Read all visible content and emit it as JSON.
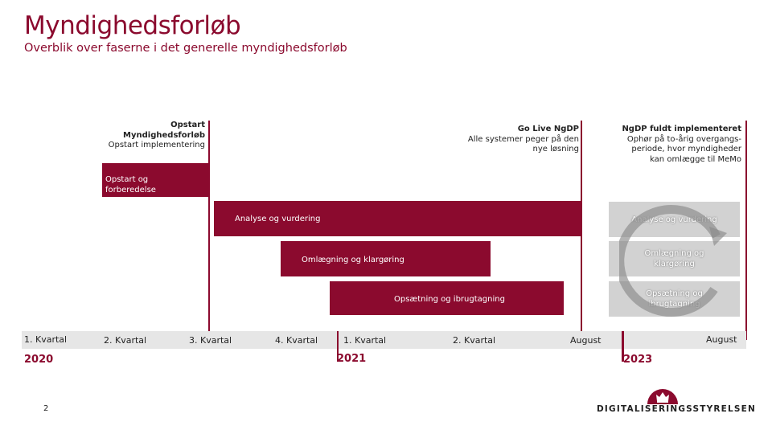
{
  "header": {
    "title": "Myndighedsforløb",
    "subtitle": "Overblik over faserne i det generelle myndighedsforløb"
  },
  "milestones": [
    {
      "title": "Opstart",
      "lines": [
        "Myndighedsforløb",
        "Opstart implementering"
      ]
    },
    {
      "title": "Go Live NgDP",
      "lines": [
        "Alle systemer peger på den",
        "nye løsning"
      ]
    },
    {
      "title": "NgDP fuldt implementeret",
      "lines": [
        "Ophør på to-årig overgangs-",
        "periode, hvor myndigheder",
        "kan omlægge til MeMo"
      ]
    }
  ],
  "phases": {
    "opstart": {
      "line1": "Opstart og",
      "line2": "forberedelse"
    },
    "analyse": "Analyse og vurdering",
    "omlaegning": "Omlægning og klargøring",
    "opsaetning": "Opsætning og ibrugtagning"
  },
  "cycle": {
    "analyse": "Analyse og vurdering",
    "omlaegning": {
      "line1": "Omlægning og",
      "line2": "klargøring"
    },
    "opsaetning": {
      "line1": "Opsætning og",
      "line2": "ibrugtagning"
    }
  },
  "timeline": {
    "ticks": [
      "1. Kvartal",
      "2. Kvartal",
      "3. Kvartal",
      "4. Kvartal",
      "1. Kvartal",
      "2. Kvartal",
      "August",
      "August"
    ],
    "years": [
      "2020",
      "2021",
      "2023"
    ]
  },
  "footer": {
    "page_number": "2",
    "logo_text": "DIGITALISERINGSSTYRELSEN"
  },
  "colors": {
    "accent": "#8b0a2e",
    "grey": "#d2d2d2",
    "axis": "#e6e6e6"
  }
}
